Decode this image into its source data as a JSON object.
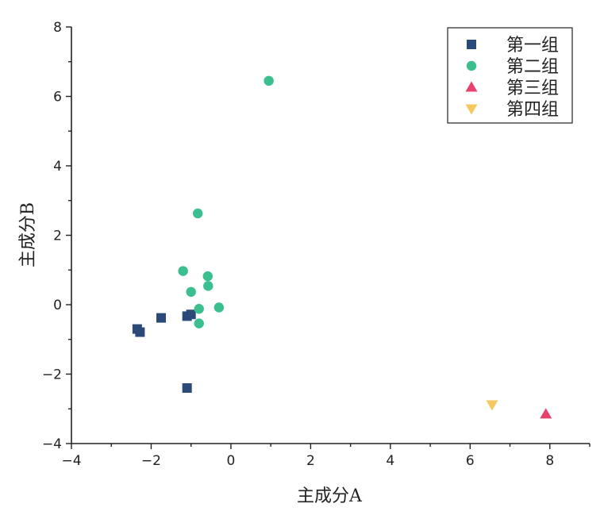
{
  "chart_data": {
    "type": "scatter",
    "xlabel": "主成分A",
    "ylabel": "主成分B",
    "xlim": [
      -4,
      9
    ],
    "ylim": [
      -4,
      8
    ],
    "x_ticks": [
      {
        "value": -4,
        "label": "−4"
      },
      {
        "value": -2,
        "label": "−2"
      },
      {
        "value": 0,
        "label": "0"
      },
      {
        "value": 2,
        "label": "2"
      },
      {
        "value": 4,
        "label": "4"
      },
      {
        "value": 6,
        "label": "6"
      },
      {
        "value": 8,
        "label": "8"
      }
    ],
    "y_ticks": [
      {
        "value": -4,
        "label": "−4"
      },
      {
        "value": -2,
        "label": "−2"
      },
      {
        "value": 0,
        "label": "0"
      },
      {
        "value": 2,
        "label": "2"
      },
      {
        "value": 4,
        "label": "4"
      },
      {
        "value": 6,
        "label": "6"
      },
      {
        "value": 8,
        "label": "8"
      }
    ],
    "grid": false,
    "legend_position": "top-right",
    "series": [
      {
        "name": "第一组",
        "marker": "square",
        "color": "#2b4a7a",
        "points": [
          {
            "x": -2.35,
            "y": -0.7
          },
          {
            "x": -2.28,
            "y": -0.79
          },
          {
            "x": -1.75,
            "y": -0.38
          },
          {
            "x": -1.1,
            "y": -0.33
          },
          {
            "x": -1.0,
            "y": -0.28
          },
          {
            "x": -1.1,
            "y": -2.4
          }
        ]
      },
      {
        "name": "第二组",
        "marker": "circle",
        "color": "#3cbf8e",
        "points": [
          {
            "x": 0.95,
            "y": 6.45
          },
          {
            "x": -0.83,
            "y": 2.63
          },
          {
            "x": -1.2,
            "y": 0.97
          },
          {
            "x": -0.58,
            "y": 0.82
          },
          {
            "x": -0.57,
            "y": 0.54
          },
          {
            "x": -1.0,
            "y": 0.37
          },
          {
            "x": -0.8,
            "y": -0.12
          },
          {
            "x": -0.3,
            "y": -0.08
          },
          {
            "x": -0.8,
            "y": -0.54
          }
        ]
      },
      {
        "name": "第三组",
        "marker": "triangle-up",
        "color": "#e9406e",
        "points": [
          {
            "x": 7.9,
            "y": -3.15
          }
        ]
      },
      {
        "name": "第四组",
        "marker": "triangle-down",
        "color": "#f6c85f",
        "points": [
          {
            "x": 6.55,
            "y": -2.88
          }
        ]
      }
    ]
  }
}
